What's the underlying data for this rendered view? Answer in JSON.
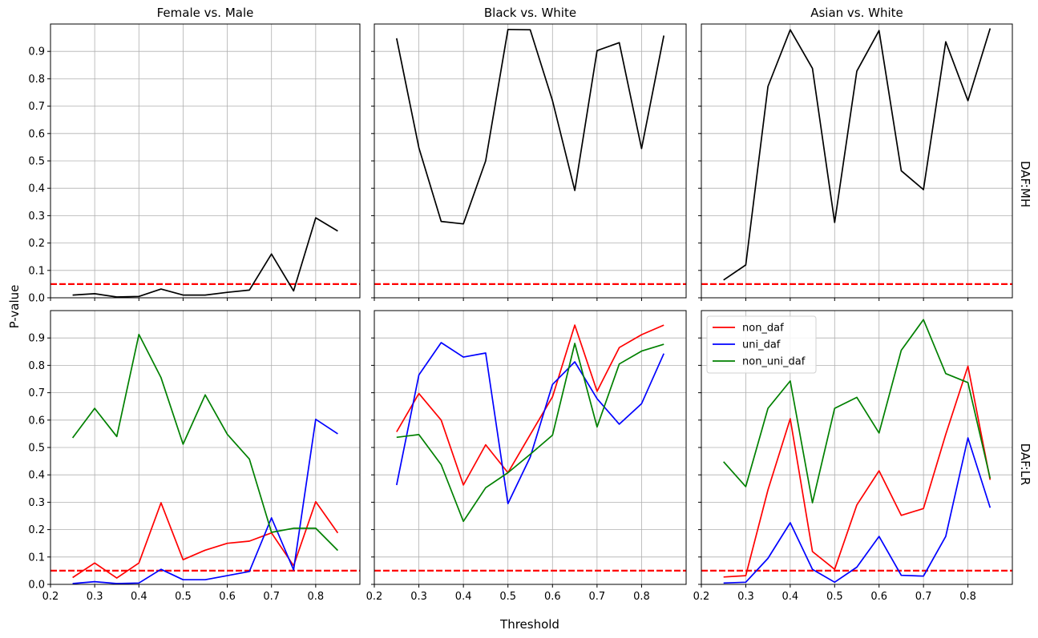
{
  "figure": {
    "xlabel": "Threshold",
    "ylabel": "P-value",
    "row_labels": [
      "DAF:MH",
      "DAF:LR"
    ],
    "column_titles": [
      "Female vs. Male",
      "Black vs. White",
      "Asian vs. White"
    ],
    "threshold_line": 0.05,
    "threshold_color": "#ff0000"
  },
  "chart_data": [
    {
      "type": "line",
      "title": "Female vs. Male",
      "row_label": "DAF:MH",
      "xlim": [
        0.2,
        0.9
      ],
      "ylim": [
        0,
        1.0
      ],
      "x_ticks": [
        "0.2",
        "0.3",
        "0.4",
        "0.5",
        "0.6",
        "0.7",
        "0.8"
      ],
      "y_ticks": [
        "0.0",
        "0.1",
        "0.2",
        "0.3",
        "0.4",
        "0.5",
        "0.6",
        "0.7",
        "0.8",
        "0.9"
      ],
      "show_x_ticklabels": false,
      "show_y_ticklabels": true,
      "grid": true,
      "x": [
        0.25,
        0.3,
        0.35,
        0.4,
        0.45,
        0.5,
        0.55,
        0.6,
        0.65,
        0.7,
        0.75,
        0.8,
        0.85
      ],
      "series": [
        {
          "color": "#000000",
          "values": [
            0.01,
            0.015,
            0.003,
            0.005,
            0.032,
            0.01,
            0.01,
            0.02,
            0.028,
            0.16,
            0.025,
            0.292,
            0.244
          ]
        }
      ]
    },
    {
      "type": "line",
      "title": "Black vs. White",
      "row_label": "DAF:MH",
      "xlim": [
        0.2,
        0.9
      ],
      "ylim": [
        0,
        1.0
      ],
      "x_ticks": [
        "0.2",
        "0.3",
        "0.4",
        "0.5",
        "0.6",
        "0.7",
        "0.8"
      ],
      "y_ticks": [
        "0.0",
        "0.1",
        "0.2",
        "0.3",
        "0.4",
        "0.5",
        "0.6",
        "0.7",
        "0.8",
        "0.9"
      ],
      "show_x_ticklabels": false,
      "show_y_ticklabels": false,
      "grid": true,
      "x": [
        0.25,
        0.3,
        0.35,
        0.4,
        0.45,
        0.5,
        0.55,
        0.6,
        0.65,
        0.7,
        0.75,
        0.8,
        0.85
      ],
      "series": [
        {
          "color": "#000000",
          "values": [
            0.948,
            0.548,
            0.279,
            0.27,
            0.5,
            0.98,
            0.979,
            0.72,
            0.392,
            0.903,
            0.932,
            0.545,
            0.958
          ]
        }
      ]
    },
    {
      "type": "line",
      "title": "Asian vs. White",
      "row_label": "DAF:MH",
      "xlim": [
        0.2,
        0.9
      ],
      "ylim": [
        0,
        1.0
      ],
      "x_ticks": [
        "0.2",
        "0.3",
        "0.4",
        "0.5",
        "0.6",
        "0.7",
        "0.8"
      ],
      "y_ticks": [
        "0.0",
        "0.1",
        "0.2",
        "0.3",
        "0.4",
        "0.5",
        "0.6",
        "0.7",
        "0.8",
        "0.9"
      ],
      "show_x_ticklabels": false,
      "show_y_ticklabels": false,
      "grid": true,
      "x": [
        0.25,
        0.3,
        0.35,
        0.4,
        0.45,
        0.5,
        0.55,
        0.6,
        0.65,
        0.7,
        0.75,
        0.8,
        0.85
      ],
      "series": [
        {
          "color": "#000000",
          "values": [
            0.065,
            0.12,
            0.772,
            0.979,
            0.838,
            0.275,
            0.828,
            0.976,
            0.464,
            0.395,
            0.935,
            0.72,
            0.984
          ]
        }
      ]
    },
    {
      "type": "line",
      "title": "",
      "row_label": "DAF:LR",
      "xlim": [
        0.2,
        0.9
      ],
      "ylim": [
        0,
        1.0
      ],
      "x_ticks": [
        "0.2",
        "0.3",
        "0.4",
        "0.5",
        "0.6",
        "0.7",
        "0.8"
      ],
      "y_ticks": [
        "0.0",
        "0.1",
        "0.2",
        "0.3",
        "0.4",
        "0.5",
        "0.6",
        "0.7",
        "0.8",
        "0.9"
      ],
      "show_x_ticklabels": true,
      "show_y_ticklabels": true,
      "grid": true,
      "x": [
        0.25,
        0.3,
        0.35,
        0.4,
        0.45,
        0.5,
        0.55,
        0.6,
        0.65,
        0.7,
        0.75,
        0.8,
        0.85
      ],
      "series": [
        {
          "name": "non_daf",
          "color": "#ff0000",
          "values": [
            0.025,
            0.078,
            0.023,
            0.078,
            0.298,
            0.09,
            0.125,
            0.15,
            0.158,
            0.188,
            0.068,
            0.302,
            0.188
          ]
        },
        {
          "name": "uni_daf",
          "color": "#0000ff",
          "values": [
            0.003,
            0.01,
            0.003,
            0.005,
            0.055,
            0.017,
            0.017,
            0.032,
            0.047,
            0.243,
            0.053,
            0.603,
            0.55
          ]
        },
        {
          "name": "non_uni_daf",
          "color": "#008000",
          "values": [
            0.535,
            0.643,
            0.54,
            0.913,
            0.755,
            0.512,
            0.692,
            0.548,
            0.458,
            0.19,
            0.205,
            0.205,
            0.124
          ]
        }
      ]
    },
    {
      "type": "line",
      "title": "",
      "row_label": "DAF:LR",
      "xlim": [
        0.2,
        0.9
      ],
      "ylim": [
        0,
        1.0
      ],
      "x_ticks": [
        "0.2",
        "0.3",
        "0.4",
        "0.5",
        "0.6",
        "0.7",
        "0.8"
      ],
      "y_ticks": [
        "0.0",
        "0.1",
        "0.2",
        "0.3",
        "0.4",
        "0.5",
        "0.6",
        "0.7",
        "0.8",
        "0.9"
      ],
      "show_x_ticklabels": true,
      "show_y_ticklabels": false,
      "grid": true,
      "x": [
        0.25,
        0.3,
        0.35,
        0.4,
        0.45,
        0.5,
        0.55,
        0.6,
        0.65,
        0.7,
        0.75,
        0.8,
        0.85
      ],
      "series": [
        {
          "name": "non_daf",
          "color": "#ff0000",
          "values": [
            0.557,
            0.697,
            0.6,
            0.363,
            0.51,
            0.408,
            0.547,
            0.685,
            0.947,
            0.705,
            0.865,
            0.912,
            0.947
          ]
        },
        {
          "name": "uni_daf",
          "color": "#0000ff",
          "values": [
            0.363,
            0.765,
            0.883,
            0.83,
            0.845,
            0.295,
            0.465,
            0.73,
            0.813,
            0.678,
            0.585,
            0.66,
            0.843
          ]
        },
        {
          "name": "non_uni_daf",
          "color": "#008000",
          "values": [
            0.537,
            0.547,
            0.437,
            0.23,
            0.353,
            0.408,
            0.475,
            0.545,
            0.88,
            0.575,
            0.805,
            0.852,
            0.877
          ]
        }
      ]
    },
    {
      "type": "line",
      "title": "",
      "row_label": "DAF:LR",
      "xlim": [
        0.2,
        0.9
      ],
      "ylim": [
        0,
        1.0
      ],
      "x_ticks": [
        "0.2",
        "0.3",
        "0.4",
        "0.5",
        "0.6",
        "0.7",
        "0.8"
      ],
      "y_ticks": [
        "0.0",
        "0.1",
        "0.2",
        "0.3",
        "0.4",
        "0.5",
        "0.6",
        "0.7",
        "0.8",
        "0.9"
      ],
      "show_x_ticklabels": true,
      "show_y_ticklabels": false,
      "grid": true,
      "legend": {
        "position": "upper-left",
        "entries": [
          "non_daf",
          "uni_daf",
          "non_uni_daf"
        ]
      },
      "x": [
        0.25,
        0.3,
        0.35,
        0.4,
        0.45,
        0.5,
        0.55,
        0.6,
        0.65,
        0.7,
        0.75,
        0.8,
        0.85
      ],
      "series": [
        {
          "name": "non_daf",
          "color": "#ff0000",
          "values": [
            0.027,
            0.032,
            0.345,
            0.605,
            0.12,
            0.055,
            0.29,
            0.415,
            0.252,
            0.277,
            0.548,
            0.797,
            0.382
          ]
        },
        {
          "name": "uni_daf",
          "color": "#0000ff",
          "values": [
            0.005,
            0.008,
            0.095,
            0.225,
            0.055,
            0.008,
            0.063,
            0.175,
            0.033,
            0.03,
            0.175,
            0.535,
            0.28
          ]
        },
        {
          "name": "non_uni_daf",
          "color": "#008000",
          "values": [
            0.448,
            0.357,
            0.643,
            0.743,
            0.298,
            0.643,
            0.683,
            0.553,
            0.855,
            0.967,
            0.77,
            0.737,
            0.387
          ]
        }
      ]
    }
  ]
}
